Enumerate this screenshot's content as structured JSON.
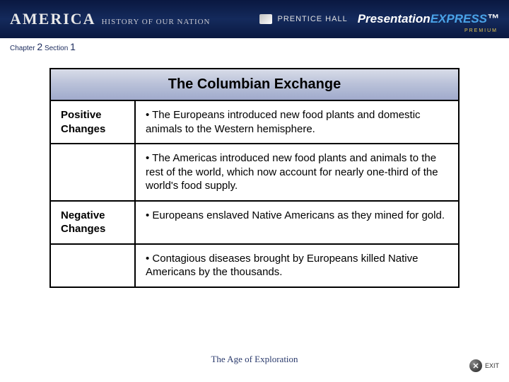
{
  "topbar": {
    "brand_main": "AMERICA",
    "brand_sub": "HISTORY OF OUR NATION",
    "publisher": "PRENTICE HALL",
    "product_a": "Presentation",
    "product_b": "EXPRESS",
    "tm": "™",
    "premium": "PREMIUM"
  },
  "meta": {
    "chapter_label": "Chapter",
    "chapter_num": "2",
    "section_label": "Section",
    "section_num": "1"
  },
  "table": {
    "title": "The Columbian Exchange",
    "rows": [
      {
        "label": "Positive Changes",
        "bullet": "• The Europeans introduced new food plants and domestic animals to the Western hemisphere."
      },
      {
        "label": "",
        "bullet": "• The Americas introduced new food plants and animals to the rest of the world, which now account for nearly one-third of the world's food supply."
      },
      {
        "label": "Negative Changes",
        "bullet": "• Europeans enslaved Native Americans as they mined for gold."
      },
      {
        "label": "",
        "bullet": "• Contagious diseases brought by Europeans killed Native Americans by the thousands."
      }
    ]
  },
  "footer": {
    "title": "The Age of Exploration",
    "exit": "EXIT",
    "exit_glyph": "✕"
  },
  "colors": {
    "topbar_grad_a": "#0a1840",
    "topbar_grad_b": "#142a5c",
    "header_grad_a": "#d8dce8",
    "header_grad_b": "#a0aacc",
    "accent_blue": "#4aa3e8",
    "footer_text": "#2a3a6c"
  }
}
